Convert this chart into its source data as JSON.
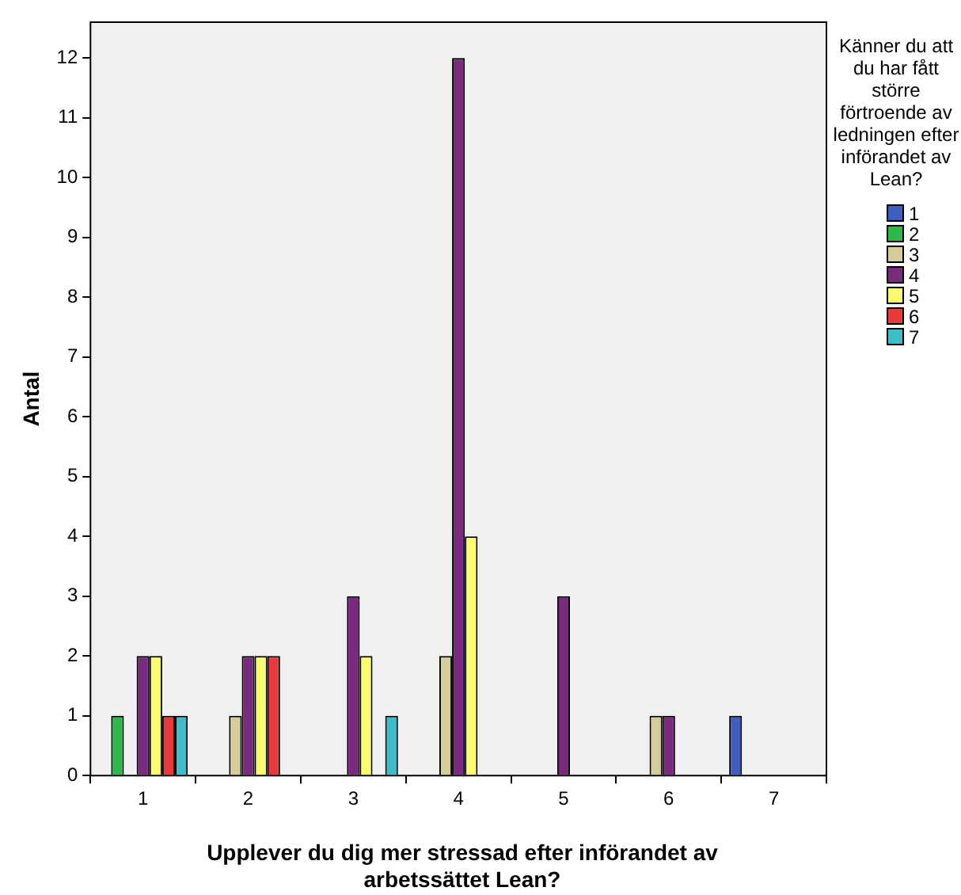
{
  "chart_data": {
    "type": "bar",
    "xlabel": "Upplever du dig mer stressad efter införandet av arbetssättet Lean?",
    "ylabel": "Antal",
    "legend_title": "Känner du att du har fått större förtroende av ledningen efter införandet av Lean?",
    "categories": [
      "1",
      "2",
      "3",
      "4",
      "5",
      "6",
      "7"
    ],
    "series": [
      {
        "name": "1",
        "color": "#3f5fbf",
        "values": [
          0,
          0,
          0,
          0,
          0,
          0,
          1
        ]
      },
      {
        "name": "2",
        "color": "#2eb84a",
        "values": [
          1,
          0,
          0,
          0,
          0,
          0,
          0
        ]
      },
      {
        "name": "3",
        "color": "#d4cc99",
        "values": [
          0,
          1,
          0,
          2,
          0,
          1,
          0
        ]
      },
      {
        "name": "4",
        "color": "#7b2b7e",
        "values": [
          2,
          2,
          3,
          12,
          3,
          1,
          0
        ]
      },
      {
        "name": "5",
        "color": "#fbfb6e",
        "values": [
          2,
          2,
          2,
          4,
          0,
          0,
          0
        ]
      },
      {
        "name": "6",
        "color": "#e83a3a",
        "values": [
          1,
          2,
          0,
          0,
          0,
          0,
          0
        ]
      },
      {
        "name": "7",
        "color": "#3ebdc8",
        "values": [
          1,
          0,
          1,
          0,
          0,
          0,
          0
        ]
      }
    ],
    "ylim": [
      0,
      12.6
    ],
    "yticks": [
      0,
      1,
      2,
      3,
      4,
      5,
      6,
      7,
      8,
      9,
      10,
      11,
      12
    ],
    "grid": false,
    "legend": "right"
  }
}
